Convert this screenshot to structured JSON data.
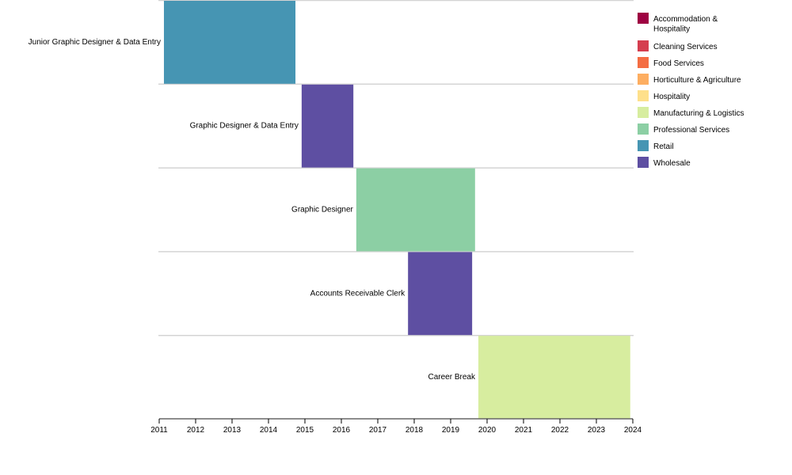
{
  "chart_data": {
    "type": "gantt",
    "xlim": [
      2011,
      2024
    ],
    "x_ticks": [
      "2011",
      "2012",
      "2013",
      "2014",
      "2015",
      "2016",
      "2017",
      "2018",
      "2019",
      "2020",
      "2021",
      "2022",
      "2023",
      "2024"
    ],
    "grid": "horizontal row separators",
    "legend_position": "right",
    "legend": [
      {
        "label": "Accommodation & Hospitality",
        "lines": [
          "Accommodation &",
          "Hospitality"
        ],
        "color": "#9e0142"
      },
      {
        "label": "Cleaning Services",
        "lines": [
          "Cleaning Services"
        ],
        "color": "#d53e4f"
      },
      {
        "label": "Food Services",
        "lines": [
          "Food Services"
        ],
        "color": "#f46d43"
      },
      {
        "label": "Horticulture & Agriculture",
        "lines": [
          "Horticulture & Agriculture"
        ],
        "color": "#fdae61"
      },
      {
        "label": "Hospitality",
        "lines": [
          "Hospitality"
        ],
        "color": "#fee08b"
      },
      {
        "label": "Manufacturing & Logistics",
        "lines": [
          "Manufacturing & Logistics"
        ],
        "color": "#d7ed9f"
      },
      {
        "label": "Professional Services",
        "lines": [
          "Professional Services"
        ],
        "color": "#8ccfa4"
      },
      {
        "label": "Retail",
        "lines": [
          "Retail"
        ],
        "color": "#4695b3"
      },
      {
        "label": "Wholesale",
        "lines": [
          "Wholesale"
        ],
        "color": "#5e4fa2"
      }
    ],
    "tasks": [
      {
        "label": "Junior Graphic Designer & Data Entry",
        "start": 2011.13,
        "end": 2014.74,
        "category": "Retail"
      },
      {
        "label": "Graphic Designer & Data Entry",
        "start": 2014.91,
        "end": 2016.33,
        "category": "Wholesale"
      },
      {
        "label": "Graphic Designer",
        "start": 2016.41,
        "end": 2019.67,
        "category": "Professional Services"
      },
      {
        "label": "Accounts Receivable Clerk",
        "start": 2017.83,
        "end": 2019.59,
        "category": "Wholesale"
      },
      {
        "label": "Career Break",
        "start": 2019.76,
        "end": 2023.93,
        "category": "Manufacturing & Logistics"
      }
    ]
  }
}
